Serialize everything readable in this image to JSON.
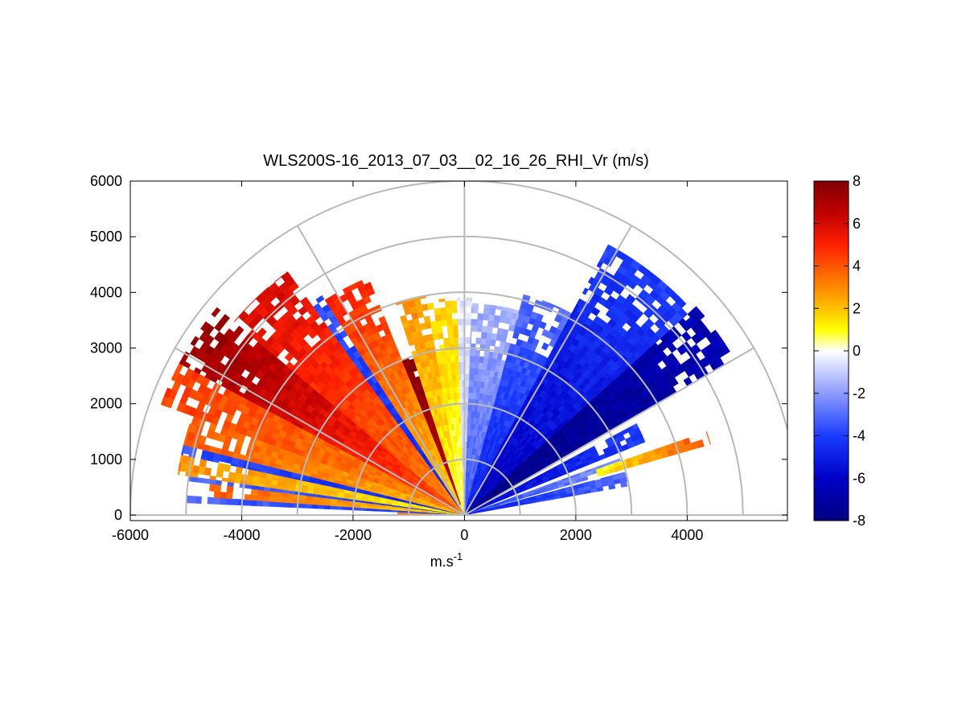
{
  "chart_data": {
    "type": "heatmap",
    "title": "WLS200S-16_2013_07_03__02_16_26_RHI_Vr (m/s)",
    "xlabel": "m.s",
    "xlabel_superscript": "-1",
    "ylabel": "",
    "xlim": [
      -6000,
      5800
    ],
    "ylim": [
      -100,
      6000
    ],
    "x_ticks": [
      -6000,
      -4000,
      -2000,
      0,
      2000,
      4000
    ],
    "y_ticks": [
      0,
      1000,
      2000,
      3000,
      4000,
      5000,
      6000
    ],
    "range_rings": [
      1000,
      2000,
      3000,
      4000,
      5000,
      6000
    ],
    "angle_spokes_deg": [
      0,
      30,
      60,
      90,
      120,
      150,
      180
    ],
    "colorbar": {
      "min": -8,
      "max": 8,
      "ticks": [
        8,
        6,
        4,
        2,
        0,
        -2,
        -4,
        -6,
        -8
      ],
      "stops": [
        {
          "v": -8,
          "c": "#000080"
        },
        {
          "v": -6,
          "c": "#0000c8"
        },
        {
          "v": -4,
          "c": "#1a3cff"
        },
        {
          "v": -2,
          "c": "#8c9bff"
        },
        {
          "v": 0,
          "c": "#ffffff"
        },
        {
          "v": 1,
          "c": "#ffff00"
        },
        {
          "v": 2,
          "c": "#ffc000"
        },
        {
          "v": 3,
          "c": "#ff8800"
        },
        {
          "v": 5,
          "c": "#ff2000"
        },
        {
          "v": 6.5,
          "c": "#c00000"
        },
        {
          "v": 8,
          "c": "#800000"
        }
      ]
    },
    "sectors": [
      {
        "az": [
          178,
          180
        ],
        "r": [
          0,
          1200
        ],
        "v": [
          2.5,
          3.5
        ]
      },
      {
        "az": [
          176,
          177.5
        ],
        "r": [
          0,
          5000
        ],
        "v": [
          -4.5,
          -3
        ]
      },
      {
        "az": [
          173,
          176
        ],
        "r": [
          0,
          4600
        ],
        "v": [
          1.5,
          4
        ]
      },
      {
        "az": [
          172,
          173
        ],
        "r": [
          0,
          5000
        ],
        "v": [
          -4.5,
          -3
        ]
      },
      {
        "az": [
          168,
          172
        ],
        "r": [
          0,
          5200
        ],
        "v": [
          1,
          3
        ]
      },
      {
        "az": [
          166,
          168
        ],
        "r": [
          0,
          5200
        ],
        "v": [
          -5,
          -3.5
        ]
      },
      {
        "az": [
          160,
          166
        ],
        "r": [
          0,
          5200
        ],
        "v": [
          2,
          4
        ]
      },
      {
        "az": [
          152,
          160
        ],
        "r": [
          0,
          5800
        ],
        "v": [
          3,
          4.5
        ]
      },
      {
        "az": [
          140,
          152
        ],
        "r": [
          0,
          5800
        ],
        "v": [
          4,
          7.5
        ]
      },
      {
        "az": [
          126,
          140
        ],
        "r": [
          0,
          5400
        ],
        "v": [
          3,
          6
        ]
      },
      {
        "az": [
          123,
          126
        ],
        "r": [
          0,
          4700
        ],
        "v": [
          -5,
          -3.5
        ]
      },
      {
        "az": [
          112,
          123
        ],
        "r": [
          0,
          4600
        ],
        "v": [
          1.5,
          5
        ]
      },
      {
        "az": [
          108,
          112
        ],
        "r": [
          200,
          3000
        ],
        "v": [
          6.5,
          8
        ]
      },
      {
        "az": [
          100,
          108
        ],
        "r": [
          0,
          4000
        ],
        "v": [
          0.6,
          3
        ]
      },
      {
        "az": [
          92,
          100
        ],
        "r": [
          0,
          3900
        ],
        "v": [
          0.3,
          2
        ]
      },
      {
        "az": [
          88,
          92
        ],
        "r": [
          0,
          3900
        ],
        "v": [
          -1.2,
          -0.4
        ]
      },
      {
        "az": [
          75,
          88
        ],
        "r": [
          0,
          3800
        ],
        "v": [
          -3.5,
          -1.5
        ]
      },
      {
        "az": [
          62,
          75
        ],
        "r": [
          0,
          4100
        ],
        "v": [
          -5,
          -3
        ]
      },
      {
        "az": [
          42,
          62
        ],
        "r": [
          0,
          5500
        ],
        "v": [
          -6.5,
          -4
        ]
      },
      {
        "az": [
          30,
          42
        ],
        "r": [
          0,
          5600
        ],
        "v": [
          -8,
          -6.5
        ]
      },
      {
        "az": [
          22,
          28
        ],
        "r": [
          0,
          3500
        ],
        "v": [
          -6,
          -4
        ]
      },
      {
        "az": [
          16,
          20
        ],
        "r": [
          0,
          3000
        ],
        "v": [
          -4,
          -2
        ]
      },
      {
        "az": [
          16,
          19
        ],
        "r": [
          2500,
          4600
        ],
        "v": [
          1,
          4.5
        ]
      },
      {
        "az": [
          10,
          15
        ],
        "r": [
          0,
          3000
        ],
        "v": [
          -5,
          -3
        ]
      }
    ]
  }
}
